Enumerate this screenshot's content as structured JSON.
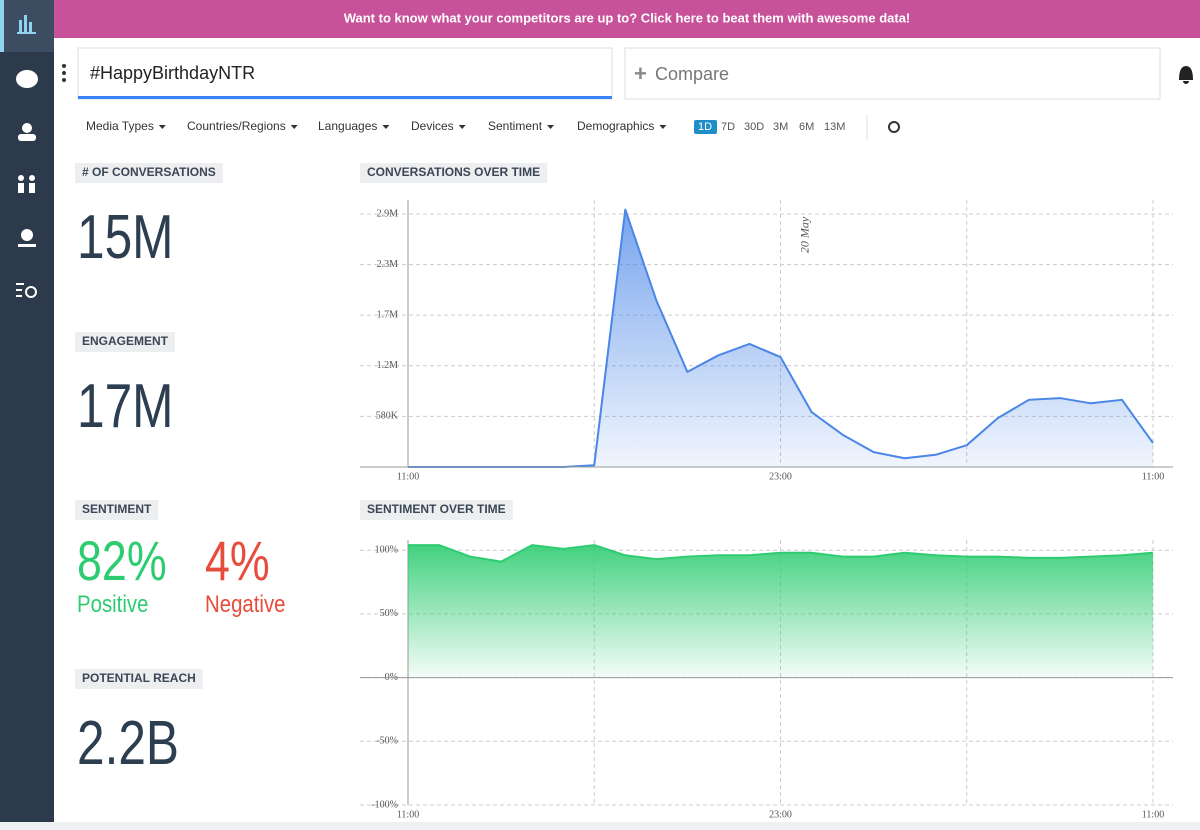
{
  "banner": "Want to know what your competitors are up to? Click here to beat them with awesome data!",
  "search": {
    "query": "#HappyBirthdayNTR",
    "compare": "Compare"
  },
  "filters": [
    "Media Types",
    "Countries/Regions",
    "Languages",
    "Devices",
    "Sentiment",
    "Demographics"
  ],
  "ranges": [
    "1D",
    "7D",
    "30D",
    "3M",
    "6M",
    "13M"
  ],
  "kpis": {
    "conversations": {
      "label": "# OF CONVERSATIONS",
      "value": "15M"
    },
    "engagement": {
      "label": "ENGAGEMENT",
      "value": "17M"
    },
    "sentiment": {
      "label": "SENTIMENT",
      "positive": {
        "value": "82%",
        "label": "Positive"
      },
      "negative": {
        "value": "4%",
        "label": "Negative"
      }
    },
    "reach": {
      "label": "POTENTIAL REACH",
      "value": "2.2B"
    }
  },
  "chart_data": [
    {
      "type": "area",
      "title": "CONVERSATIONS OVER TIME",
      "categories": [
        "11:00",
        null,
        null,
        null,
        null,
        null,
        null,
        null,
        null,
        null,
        null,
        null,
        "23:00",
        null,
        null,
        null,
        null,
        null,
        null,
        null,
        null,
        null,
        null,
        null,
        "11:00"
      ],
      "values": [
        0,
        0,
        0,
        0,
        0,
        0,
        20000,
        2950000,
        1910000,
        1090000,
        1280000,
        1410000,
        1260000,
        630000,
        370000,
        170000,
        100000,
        140000,
        250000,
        560000,
        770000,
        790000,
        730000,
        770000,
        275000
      ],
      "color": "#4a86e8",
      "ylim": [
        0,
        3060000
      ],
      "yticks": [
        {
          "value": 580000,
          "label": "580K"
        },
        {
          "value": 1160000,
          "label": "1.2M"
        },
        {
          "value": 1740000,
          "label": "1.7M"
        },
        {
          "value": 2320000,
          "label": "2.3M"
        },
        {
          "value": 2900000,
          "label": "2.9M"
        }
      ],
      "grid": true,
      "annotation": "20 May"
    },
    {
      "type": "area",
      "title": "SENTIMENT OVER TIME",
      "categories": [
        "11:00",
        null,
        null,
        null,
        null,
        null,
        null,
        null,
        null,
        null,
        null,
        null,
        "23:00",
        null,
        null,
        null,
        null,
        null,
        null,
        null,
        null,
        null,
        null,
        null,
        "11:00"
      ],
      "values": [
        104,
        104,
        95,
        91,
        104,
        101,
        104,
        96,
        93,
        95,
        96,
        96,
        98,
        98,
        95,
        95,
        98,
        96,
        95,
        95,
        94,
        94,
        95,
        96,
        98
      ],
      "color": "#2ecc71",
      "ylim": [
        -100,
        108
      ],
      "yticks": [
        {
          "value": -100,
          "label": "-100%"
        },
        {
          "value": -50,
          "label": "-50%"
        },
        {
          "value": 0,
          "label": "0%"
        },
        {
          "value": 50,
          "label": "50%"
        },
        {
          "value": 100,
          "label": "100%"
        }
      ],
      "grid": true
    }
  ]
}
